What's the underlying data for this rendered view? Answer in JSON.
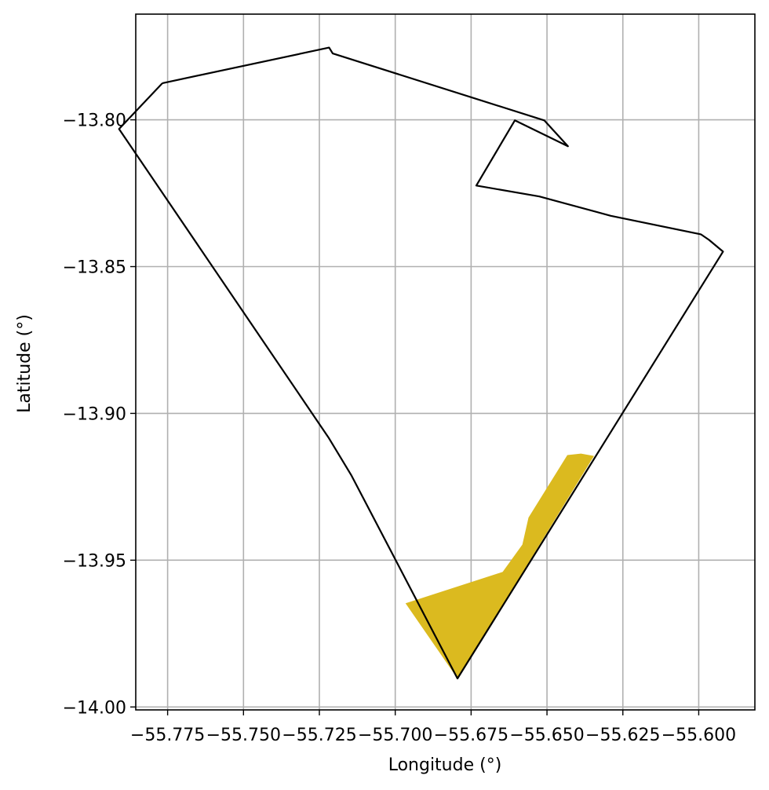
{
  "chart_data": {
    "type": "map",
    "xlabel": "Longitude (°)",
    "ylabel": "Latitude (°)",
    "xlim": [
      -55.7855,
      -55.5815
    ],
    "ylim": [
      -14.001,
      -13.764
    ],
    "grid": true,
    "x_ticks": [
      {
        "value": -55.775,
        "label": "−55.775"
      },
      {
        "value": -55.75,
        "label": "−55.750"
      },
      {
        "value": -55.725,
        "label": "−55.725"
      },
      {
        "value": -55.7,
        "label": "−55.700"
      },
      {
        "value": -55.675,
        "label": "−55.675"
      },
      {
        "value": -55.65,
        "label": "−55.650"
      },
      {
        "value": -55.625,
        "label": "−55.625"
      },
      {
        "value": -55.6,
        "label": "−55.600"
      }
    ],
    "y_ticks": [
      {
        "value": -13.8,
        "label": "−13.80"
      },
      {
        "value": -13.85,
        "label": "−13.85"
      },
      {
        "value": -13.9,
        "label": "−13.90"
      },
      {
        "value": -13.95,
        "label": "−13.95"
      },
      {
        "value": -14.0,
        "label": "−14.00"
      }
    ],
    "boundary": {
      "color": "#000000",
      "points": [
        [
          -55.7767,
          -13.7875
        ],
        [
          -55.7218,
          -13.7754
        ],
        [
          -55.7206,
          -13.7774
        ],
        [
          -55.6509,
          -13.8002
        ],
        [
          -55.6431,
          -13.809
        ],
        [
          -55.6606,
          -13.8002
        ],
        [
          -55.6733,
          -13.8224
        ],
        [
          -55.6525,
          -13.8261
        ],
        [
          -55.629,
          -13.8327
        ],
        [
          -55.5993,
          -13.839
        ],
        [
          -55.5966,
          -13.8409
        ],
        [
          -55.592,
          -13.8449
        ],
        [
          -55.6795,
          -13.9903
        ],
        [
          -55.7144,
          -13.9212
        ],
        [
          -55.722,
          -13.9082
        ],
        [
          -55.791,
          -13.8031
        ],
        [
          -55.7767,
          -13.7875
        ]
      ]
    },
    "highlight": {
      "color": "#dbba1f",
      "points": [
        [
          -55.6966,
          -13.9647
        ],
        [
          -55.6646,
          -13.954
        ],
        [
          -55.6581,
          -13.9447
        ],
        [
          -55.6561,
          -13.9355
        ],
        [
          -55.6433,
          -13.9142
        ],
        [
          -55.6388,
          -13.9137
        ],
        [
          -55.6345,
          -13.9145
        ],
        [
          -55.6795,
          -13.9903
        ],
        [
          -55.6966,
          -13.9647
        ]
      ]
    }
  }
}
